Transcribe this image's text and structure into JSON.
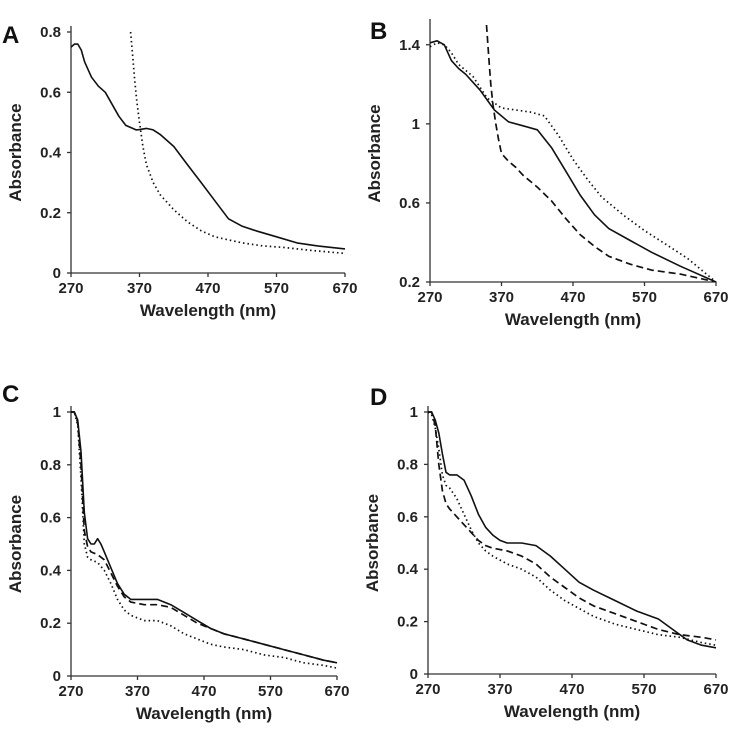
{
  "chart_data": [
    {
      "panel": "A",
      "type": "line",
      "xlabel": "Wavelength (nm)",
      "ylabel": "Absorbance",
      "xlim": [
        270,
        670
      ],
      "ylim": [
        0,
        0.8
      ],
      "xticks": [
        270,
        370,
        470,
        570,
        670
      ],
      "xtick_labels": [
        "270",
        "370",
        "470",
        "570",
        "670"
      ],
      "yticks": [
        0,
        0.2,
        0.4,
        0.6,
        0.8
      ],
      "ytick_labels": [
        "0",
        "0.2",
        "0.4",
        "0.6",
        "0.8"
      ],
      "series": [
        {
          "name": "solid",
          "dash": "solid",
          "x": [
            270,
            275,
            280,
            285,
            290,
            300,
            310,
            320,
            330,
            340,
            350,
            360,
            365,
            370,
            380,
            390,
            400,
            420,
            440,
            460,
            480,
            500,
            520,
            540,
            570,
            600,
            630,
            670
          ],
          "y": [
            0.75,
            0.76,
            0.76,
            0.74,
            0.7,
            0.65,
            0.62,
            0.6,
            0.56,
            0.52,
            0.49,
            0.48,
            0.475,
            0.476,
            0.48,
            0.475,
            0.46,
            0.42,
            0.36,
            0.3,
            0.24,
            0.18,
            0.155,
            0.14,
            0.12,
            0.1,
            0.09,
            0.08
          ]
        },
        {
          "name": "dotted",
          "dash": "dotted",
          "x": [
            357,
            360,
            363,
            366,
            370,
            375,
            380,
            390,
            400,
            420,
            440,
            460,
            480,
            500,
            520,
            550,
            580,
            620,
            670
          ],
          "y": [
            0.8,
            0.72,
            0.64,
            0.57,
            0.5,
            0.42,
            0.36,
            0.3,
            0.26,
            0.21,
            0.17,
            0.14,
            0.12,
            0.11,
            0.1,
            0.09,
            0.085,
            0.075,
            0.065
          ]
        }
      ]
    },
    {
      "panel": "B",
      "type": "line",
      "xlabel": "Wavelength (nm)",
      "ylabel": "Absorbance",
      "xlim": [
        270,
        670
      ],
      "ylim": [
        0.2,
        1.5
      ],
      "xticks": [
        270,
        370,
        470,
        570,
        670
      ],
      "xtick_labels": [
        "270",
        "370",
        "470",
        "570",
        "670"
      ],
      "yticks": [
        0.2,
        0.6,
        1.0,
        1.4
      ],
      "ytick_labels": [
        "0.2",
        "0.6",
        "1",
        "1.4"
      ],
      "series": [
        {
          "name": "solid",
          "dash": "solid",
          "x": [
            270,
            280,
            290,
            300,
            310,
            320,
            340,
            360,
            380,
            400,
            420,
            440,
            460,
            480,
            500,
            520,
            550,
            580,
            620,
            670
          ],
          "y": [
            1.41,
            1.42,
            1.4,
            1.32,
            1.28,
            1.25,
            1.17,
            1.07,
            1.01,
            0.99,
            0.97,
            0.88,
            0.76,
            0.64,
            0.54,
            0.47,
            0.41,
            0.35,
            0.28,
            0.2
          ]
        },
        {
          "name": "dotted",
          "dash": "dotted",
          "x": [
            270,
            280,
            290,
            300,
            310,
            330,
            350,
            370,
            390,
            410,
            430,
            450,
            470,
            490,
            510,
            540,
            570,
            600,
            630,
            670
          ],
          "y": [
            1.39,
            1.41,
            1.4,
            1.36,
            1.3,
            1.24,
            1.13,
            1.08,
            1.07,
            1.06,
            1.04,
            0.94,
            0.82,
            0.72,
            0.63,
            0.54,
            0.46,
            0.39,
            0.32,
            0.2
          ]
        },
        {
          "name": "dashed",
          "dash": "dashed",
          "x": [
            349,
            351,
            353,
            355,
            358,
            362,
            366,
            370,
            380,
            390,
            400,
            420,
            440,
            460,
            480,
            500,
            520,
            550,
            580,
            620,
            670
          ],
          "y": [
            1.5,
            1.4,
            1.3,
            1.2,
            1.1,
            1.0,
            0.92,
            0.85,
            0.81,
            0.78,
            0.74,
            0.68,
            0.61,
            0.52,
            0.44,
            0.38,
            0.33,
            0.29,
            0.26,
            0.24,
            0.2
          ]
        }
      ]
    },
    {
      "panel": "C",
      "type": "line",
      "xlabel": "Wavelength (nm)",
      "ylabel": "Absorbance",
      "xlim": [
        270,
        670
      ],
      "ylim": [
        0,
        1.0
      ],
      "xticks": [
        270,
        370,
        470,
        570,
        670
      ],
      "xtick_labels": [
        "270",
        "370",
        "470",
        "570",
        "670"
      ],
      "yticks": [
        0,
        0.2,
        0.4,
        0.6,
        0.8,
        1.0
      ],
      "ytick_labels": [
        "0",
        "0.2",
        "0.4",
        "0.6",
        "0.8",
        "1"
      ],
      "series": [
        {
          "name": "solid",
          "dash": "solid",
          "x": [
            270,
            275,
            280,
            285,
            290,
            295,
            300,
            305,
            310,
            315,
            320,
            330,
            340,
            350,
            360,
            370,
            380,
            390,
            400,
            420,
            440,
            460,
            480,
            500,
            530,
            560,
            590,
            620,
            650,
            670
          ],
          "y": [
            1.0,
            1.0,
            0.97,
            0.85,
            0.62,
            0.52,
            0.5,
            0.5,
            0.52,
            0.5,
            0.47,
            0.41,
            0.35,
            0.31,
            0.29,
            0.29,
            0.29,
            0.29,
            0.29,
            0.27,
            0.24,
            0.21,
            0.18,
            0.16,
            0.14,
            0.12,
            0.1,
            0.08,
            0.06,
            0.05
          ]
        },
        {
          "name": "dashed",
          "dash": "dashed",
          "x": [
            270,
            275,
            280,
            285,
            290,
            295,
            300,
            310,
            320,
            330,
            340,
            350,
            360,
            380,
            400,
            420,
            440,
            460,
            480,
            500,
            530,
            560,
            590,
            620,
            650,
            670
          ],
          "y": [
            1.0,
            1.0,
            0.96,
            0.8,
            0.55,
            0.49,
            0.47,
            0.46,
            0.44,
            0.39,
            0.34,
            0.3,
            0.28,
            0.27,
            0.27,
            0.26,
            0.23,
            0.2,
            0.18,
            0.16,
            0.14,
            0.12,
            0.1,
            0.08,
            0.06,
            0.05
          ]
        },
        {
          "name": "dotted",
          "dash": "dotted",
          "x": [
            270,
            275,
            280,
            285,
            290,
            295,
            300,
            310,
            320,
            330,
            340,
            350,
            360,
            380,
            400,
            420,
            440,
            460,
            480,
            500,
            530,
            560,
            590,
            620,
            650,
            670
          ],
          "y": [
            1.0,
            1.0,
            0.95,
            0.75,
            0.5,
            0.45,
            0.44,
            0.43,
            0.4,
            0.35,
            0.29,
            0.25,
            0.23,
            0.21,
            0.21,
            0.19,
            0.16,
            0.14,
            0.12,
            0.11,
            0.1,
            0.08,
            0.07,
            0.05,
            0.04,
            0.03
          ]
        }
      ]
    },
    {
      "panel": "D",
      "type": "line",
      "xlabel": "Wavelength (nm)",
      "ylabel": "Absorbance",
      "xlim": [
        270,
        670
      ],
      "ylim": [
        0,
        1.0
      ],
      "xticks": [
        270,
        370,
        470,
        570,
        670
      ],
      "xtick_labels": [
        "270",
        "370",
        "470",
        "570",
        "670"
      ],
      "yticks": [
        0,
        0.2,
        0.4,
        0.6,
        0.8,
        1.0
      ],
      "ytick_labels": [
        "0",
        "0.2",
        "0.4",
        "0.6",
        "0.8",
        "1"
      ],
      "series": [
        {
          "name": "solid",
          "dash": "solid",
          "x": [
            270,
            275,
            280,
            285,
            290,
            295,
            300,
            310,
            320,
            330,
            340,
            350,
            360,
            370,
            380,
            400,
            420,
            440,
            460,
            480,
            500,
            530,
            560,
            590,
            610,
            630,
            650,
            670
          ],
          "y": [
            1.0,
            1.0,
            0.97,
            0.92,
            0.84,
            0.77,
            0.76,
            0.76,
            0.74,
            0.68,
            0.61,
            0.56,
            0.53,
            0.51,
            0.5,
            0.5,
            0.49,
            0.45,
            0.4,
            0.35,
            0.32,
            0.28,
            0.24,
            0.21,
            0.17,
            0.13,
            0.11,
            0.1
          ]
        },
        {
          "name": "dashed",
          "dash": "dashed",
          "x": [
            270,
            275,
            280,
            285,
            290,
            295,
            300,
            310,
            320,
            330,
            340,
            350,
            360,
            380,
            400,
            420,
            440,
            460,
            480,
            500,
            530,
            560,
            590,
            620,
            650,
            670
          ],
          "y": [
            1.0,
            1.0,
            0.95,
            0.8,
            0.7,
            0.65,
            0.63,
            0.6,
            0.57,
            0.54,
            0.51,
            0.49,
            0.48,
            0.47,
            0.45,
            0.42,
            0.37,
            0.33,
            0.29,
            0.26,
            0.23,
            0.2,
            0.17,
            0.15,
            0.14,
            0.13
          ]
        },
        {
          "name": "dotted",
          "dash": "dotted",
          "x": [
            270,
            275,
            280,
            285,
            290,
            295,
            300,
            310,
            320,
            330,
            340,
            350,
            360,
            380,
            400,
            420,
            440,
            460,
            480,
            500,
            530,
            560,
            590,
            620,
            650,
            670
          ],
          "y": [
            1.0,
            0.99,
            0.94,
            0.86,
            0.76,
            0.72,
            0.71,
            0.67,
            0.61,
            0.55,
            0.5,
            0.47,
            0.45,
            0.42,
            0.4,
            0.37,
            0.32,
            0.28,
            0.25,
            0.22,
            0.19,
            0.17,
            0.15,
            0.14,
            0.12,
            0.11
          ]
        }
      ]
    }
  ]
}
